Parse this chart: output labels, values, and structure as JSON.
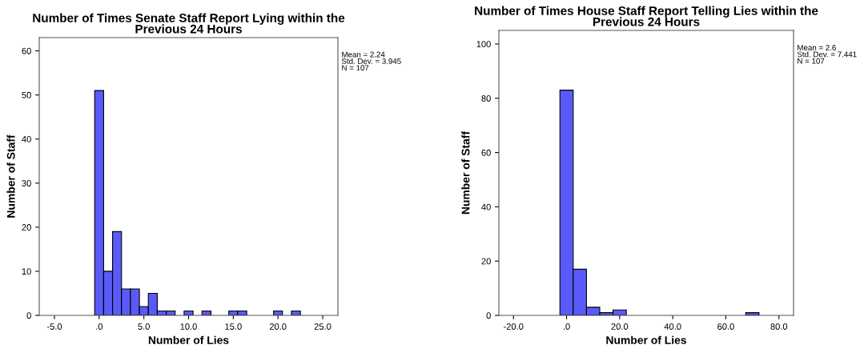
{
  "chart_data": [
    {
      "type": "histogram",
      "title": "Number of Times Senate Staff Report Lying within the\nPrevious 24 Hours",
      "xlabel": "Number of Lies",
      "ylabel": "Number of Staff",
      "color": "#5a5afa",
      "bins": [
        -0.5,
        0.5,
        1.5,
        2.5,
        3.5,
        4.5,
        5.5,
        6.5,
        7.5,
        8.5,
        9.5,
        10.5,
        11.5,
        12.5,
        13.5,
        14.5,
        15.5,
        16.5,
        17.5,
        18.5,
        19.5,
        20.5,
        21.5,
        22.5
      ],
      "values": [
        51,
        10,
        19,
        6,
        6,
        2,
        5,
        1,
        1,
        0,
        1,
        0,
        1,
        0,
        0,
        1,
        1,
        0,
        0,
        0,
        1,
        0,
        1
      ],
      "xlim": [
        -6.7,
        26.7
      ],
      "xticks": [
        {
          "value": -5,
          "label": "-5.0"
        },
        {
          "value": 0,
          "label": ".0"
        },
        {
          "value": 5,
          "label": "5.0"
        },
        {
          "value": 10,
          "label": "10.0"
        },
        {
          "value": 15,
          "label": "15.0"
        },
        {
          "value": 20,
          "label": "20.0"
        },
        {
          "value": 25,
          "label": "25.0"
        }
      ],
      "ylim": [
        0,
        63
      ],
      "yticks": [
        0,
        10,
        20,
        30,
        40,
        50,
        60
      ],
      "grid": false,
      "legend": false,
      "annotations": [
        "Mean = 2.24\nStd. Dev. = 3.945\nN = 107"
      ]
    },
    {
      "type": "histogram",
      "title": "Number of Times House Staff Report Telling Lies within the\nPrevious 24 Hours",
      "xlabel": "Number of Lies",
      "ylabel": "Number of Staff",
      "color": "#5a5afa",
      "bins": [
        -2.5,
        2.5,
        7.5,
        12.5,
        17.5,
        22.5,
        27.5,
        32.5,
        37.5,
        42.5,
        47.5,
        52.5,
        57.5,
        62.5,
        67.5,
        72.5
      ],
      "values": [
        83,
        17,
        3,
        1,
        2,
        0,
        0,
        0,
        0,
        0,
        0,
        0,
        0,
        0,
        1
      ],
      "xlim": [
        -25.5,
        85.5
      ],
      "xticks": [
        {
          "value": -20,
          "label": "-20.0"
        },
        {
          "value": 0,
          "label": ".0"
        },
        {
          "value": 20,
          "label": "20.0"
        },
        {
          "value": 40,
          "label": "40.0"
        },
        {
          "value": 60,
          "label": "60.0"
        },
        {
          "value": 80,
          "label": "80.0"
        }
      ],
      "ylim": [
        0,
        105
      ],
      "yticks": [
        0,
        20,
        40,
        60,
        80,
        100
      ],
      "grid": false,
      "legend": false,
      "annotations": [
        "Mean = 2.6\nStd. Dev. = 7.441\nN = 107"
      ]
    }
  ]
}
